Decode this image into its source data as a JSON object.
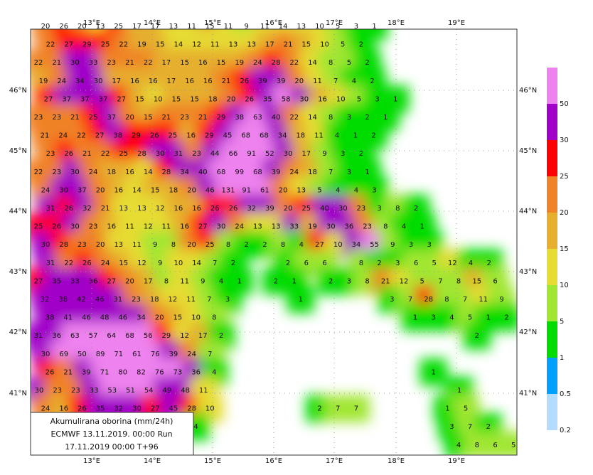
{
  "map": {
    "lon_labels": [
      "13°E",
      "14°E",
      "15°E",
      "16°E",
      "17°E",
      "18°E",
      "19°E"
    ],
    "lat_labels": [
      "46°N",
      "45°N",
      "44°N",
      "43°N",
      "42°N",
      "41°N"
    ],
    "caption": [
      "Akumulirana oborina (mm/24h)",
      "ECMWF 13.11.2019.  00:00 Run",
      "17.11.2019 00:00  T+96"
    ],
    "legend": {
      "levels": [
        0.2,
        0.5,
        1,
        5,
        10,
        15,
        20,
        25,
        30,
        50
      ],
      "colors": [
        "#b4dcff",
        "#00a0ff",
        "#00dc00",
        "#a0e632",
        "#e6dc32",
        "#e6af2d",
        "#f08228",
        "#ff0000",
        "#a000c8",
        "#ee82ee"
      ]
    },
    "grid_values": [
      [
        20,
        26,
        20,
        13,
        25,
        17,
        17,
        13,
        11,
        15,
        11,
        9,
        11,
        14,
        13,
        10,
        5,
        3,
        1
      ],
      [
        22,
        27,
        29,
        25,
        22,
        19,
        15,
        14,
        12,
        11,
        13,
        13,
        17,
        21,
        15,
        10,
        5,
        2
      ],
      [
        22,
        21,
        30,
        33,
        23,
        21,
        22,
        17,
        15,
        16,
        15,
        19,
        24,
        28,
        22,
        14,
        8,
        5,
        2
      ],
      [
        19,
        24,
        34,
        30,
        17,
        16,
        16,
        17,
        16,
        16,
        21,
        26,
        39,
        39,
        20,
        11,
        7,
        4,
        2
      ],
      [
        27,
        37,
        37,
        37,
        27,
        15,
        10,
        15,
        15,
        18,
        20,
        26,
        35,
        58,
        30,
        16,
        10,
        5,
        3,
        1
      ],
      [
        23,
        23,
        21,
        25,
        37,
        20,
        15,
        21,
        23,
        21,
        29,
        38,
        63,
        40,
        22,
        14,
        8,
        3,
        2,
        1
      ],
      [
        21,
        24,
        22,
        27,
        38,
        29,
        26,
        25,
        16,
        29,
        45,
        68,
        68,
        34,
        18,
        11,
        4,
        1,
        2
      ],
      [
        23,
        26,
        21,
        22,
        25,
        28,
        30,
        31,
        23,
        44,
        66,
        91,
        52,
        30,
        17,
        9,
        3,
        2
      ],
      [
        22,
        23,
        30,
        24,
        18,
        16,
        14,
        28,
        34,
        40,
        68,
        99,
        68,
        39,
        24,
        18,
        7,
        3,
        1
      ],
      [
        24,
        30,
        37,
        20,
        16,
        14,
        15,
        18,
        20,
        46,
        131,
        91,
        61,
        20,
        13,
        5,
        4,
        4,
        3
      ],
      [
        31,
        26,
        32,
        21,
        13,
        13,
        12,
        16,
        16,
        26,
        26,
        32,
        39,
        20,
        25,
        40,
        30,
        23,
        3,
        8,
        2
      ],
      [
        25,
        26,
        30,
        23,
        16,
        11,
        12,
        11,
        16,
        27,
        30,
        24,
        13,
        13,
        33,
        19,
        30,
        36,
        23,
        8,
        4,
        1
      ],
      [
        30,
        28,
        23,
        20,
        13,
        11,
        9,
        8,
        20,
        25,
        8,
        2,
        2,
        8,
        4,
        27,
        10,
        34,
        55,
        9,
        3,
        3
      ],
      [
        31,
        22,
        26,
        24,
        15,
        12,
        9,
        10,
        14,
        7,
        2,
        null,
        null,
        2,
        6,
        6,
        null,
        8,
        2,
        3,
        6,
        5,
        12,
        4,
        2
      ],
      [
        27,
        35,
        33,
        36,
        27,
        20,
        17,
        8,
        11,
        9,
        4,
        1,
        null,
        2,
        1,
        null,
        2,
        3,
        8,
        21,
        12,
        5,
        7,
        8,
        15,
        6
      ],
      [
        32,
        38,
        42,
        46,
        31,
        23,
        18,
        12,
        11,
        7,
        3,
        null,
        null,
        null,
        1,
        null,
        null,
        null,
        null,
        3,
        7,
        28,
        8,
        7,
        11,
        9
      ],
      [
        38,
        41,
        46,
        48,
        46,
        34,
        20,
        15,
        10,
        8,
        null,
        null,
        null,
        null,
        null,
        null,
        null,
        null,
        null,
        null,
        1,
        3,
        4,
        5,
        1,
        2
      ],
      [
        31,
        36,
        63,
        57,
        64,
        68,
        56,
        29,
        12,
        17,
        2,
        null,
        null,
        null,
        null,
        null,
        null,
        null,
        null,
        null,
        null,
        null,
        null,
        null,
        2
      ],
      [
        30,
        69,
        50,
        89,
        71,
        61,
        76,
        39,
        24,
        7
      ],
      [
        26,
        21,
        39,
        71,
        80,
        82,
        76,
        73,
        36,
        4,
        null,
        null,
        null,
        null,
        null,
        null,
        null,
        null,
        null,
        null,
        null,
        1
      ],
      [
        30,
        23,
        23,
        33,
        53,
        51,
        54,
        49,
        48,
        11,
        null,
        null,
        null,
        null,
        null,
        null,
        null,
        null,
        null,
        null,
        null,
        null,
        null,
        1
      ],
      [
        24,
        16,
        26,
        35,
        32,
        30,
        27,
        45,
        28,
        10,
        null,
        null,
        null,
        null,
        null,
        2,
        7,
        7,
        null,
        null,
        null,
        null,
        1,
        5
      ],
      [
        null,
        null,
        null,
        null,
        null,
        null,
        null,
        null,
        4,
        null,
        null,
        null,
        null,
        null,
        null,
        null,
        null,
        null,
        null,
        null,
        null,
        null,
        3,
        7,
        2
      ],
      [
        null,
        null,
        null,
        null,
        null,
        null,
        null,
        null,
        null,
        null,
        null,
        null,
        null,
        null,
        null,
        null,
        null,
        null,
        null,
        null,
        null,
        null,
        null,
        4,
        8,
        6,
        5
      ]
    ]
  }
}
